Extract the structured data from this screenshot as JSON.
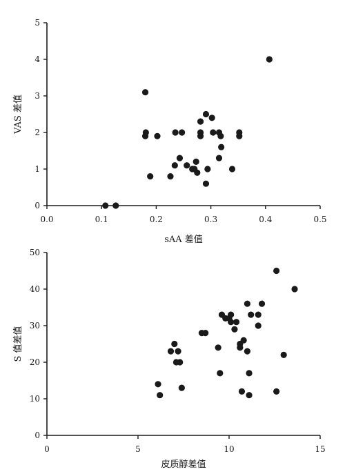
{
  "chart_data": [
    {
      "type": "scatter",
      "xlabel": "sAA 差值",
      "ylabel": "VAS 差值",
      "xlim": [
        0.0,
        0.5
      ],
      "ylim": [
        0,
        5
      ],
      "x_ticks": [
        "0.0",
        "0.1",
        "0.2",
        "0.3",
        "0.4",
        "0.5"
      ],
      "y_ticks": [
        "0",
        "1",
        "2",
        "3",
        "4",
        "5"
      ],
      "grid": false,
      "marker_color": "#1a1a1a",
      "points": [
        {
          "x": 0.107,
          "y": 0.0
        },
        {
          "x": 0.126,
          "y": 0.0
        },
        {
          "x": 0.18,
          "y": 3.1
        },
        {
          "x": 0.181,
          "y": 2.0
        },
        {
          "x": 0.18,
          "y": 1.9
        },
        {
          "x": 0.189,
          "y": 0.8
        },
        {
          "x": 0.202,
          "y": 1.9
        },
        {
          "x": 0.226,
          "y": 0.8
        },
        {
          "x": 0.234,
          "y": 1.1
        },
        {
          "x": 0.235,
          "y": 2.0
        },
        {
          "x": 0.243,
          "y": 1.3
        },
        {
          "x": 0.247,
          "y": 2.0
        },
        {
          "x": 0.256,
          "y": 1.1
        },
        {
          "x": 0.266,
          "y": 1.0
        },
        {
          "x": 0.27,
          "y": 1.0
        },
        {
          "x": 0.273,
          "y": 1.2
        },
        {
          "x": 0.275,
          "y": 0.9
        },
        {
          "x": 0.281,
          "y": 2.3
        },
        {
          "x": 0.281,
          "y": 2.0
        },
        {
          "x": 0.281,
          "y": 1.9
        },
        {
          "x": 0.291,
          "y": 2.5
        },
        {
          "x": 0.291,
          "y": 0.6
        },
        {
          "x": 0.294,
          "y": 1.0
        },
        {
          "x": 0.302,
          "y": 2.4
        },
        {
          "x": 0.304,
          "y": 2.0
        },
        {
          "x": 0.315,
          "y": 2.0
        },
        {
          "x": 0.315,
          "y": 1.3
        },
        {
          "x": 0.318,
          "y": 1.9
        },
        {
          "x": 0.319,
          "y": 1.6
        },
        {
          "x": 0.339,
          "y": 1.0
        },
        {
          "x": 0.352,
          "y": 2.0
        },
        {
          "x": 0.352,
          "y": 1.9
        },
        {
          "x": 0.407,
          "y": 4.0
        }
      ]
    },
    {
      "type": "scatter",
      "xlabel": "皮质醇差值",
      "ylabel": "S 值差值",
      "xlim": [
        0,
        15
      ],
      "ylim": [
        0,
        50
      ],
      "x_ticks": [
        "0",
        "5",
        "10",
        "15"
      ],
      "y_ticks": [
        "0",
        "10",
        "20",
        "30",
        "40",
        "50"
      ],
      "grid": false,
      "marker_color": "#1a1a1a",
      "points": [
        {
          "x": 6.1,
          "y": 14
        },
        {
          "x": 6.2,
          "y": 11
        },
        {
          "x": 6.8,
          "y": 23
        },
        {
          "x": 7.0,
          "y": 25
        },
        {
          "x": 7.1,
          "y": 20
        },
        {
          "x": 7.2,
          "y": 23
        },
        {
          "x": 7.3,
          "y": 20
        },
        {
          "x": 7.4,
          "y": 13
        },
        {
          "x": 8.5,
          "y": 28
        },
        {
          "x": 8.7,
          "y": 28
        },
        {
          "x": 9.4,
          "y": 24
        },
        {
          "x": 9.5,
          "y": 17
        },
        {
          "x": 9.6,
          "y": 33
        },
        {
          "x": 9.8,
          "y": 32
        },
        {
          "x": 10.0,
          "y": 32
        },
        {
          "x": 10.1,
          "y": 33
        },
        {
          "x": 10.1,
          "y": 31
        },
        {
          "x": 10.3,
          "y": 29
        },
        {
          "x": 10.4,
          "y": 31
        },
        {
          "x": 10.6,
          "y": 24
        },
        {
          "x": 10.6,
          "y": 25
        },
        {
          "x": 10.7,
          "y": 12
        },
        {
          "x": 10.8,
          "y": 26
        },
        {
          "x": 11.0,
          "y": 36
        },
        {
          "x": 11.0,
          "y": 23
        },
        {
          "x": 11.1,
          "y": 17
        },
        {
          "x": 11.1,
          "y": 11
        },
        {
          "x": 11.2,
          "y": 33
        },
        {
          "x": 11.6,
          "y": 33
        },
        {
          "x": 11.6,
          "y": 30
        },
        {
          "x": 11.8,
          "y": 36
        },
        {
          "x": 12.6,
          "y": 45
        },
        {
          "x": 12.6,
          "y": 12
        },
        {
          "x": 13.0,
          "y": 22
        },
        {
          "x": 13.6,
          "y": 40
        }
      ]
    }
  ]
}
